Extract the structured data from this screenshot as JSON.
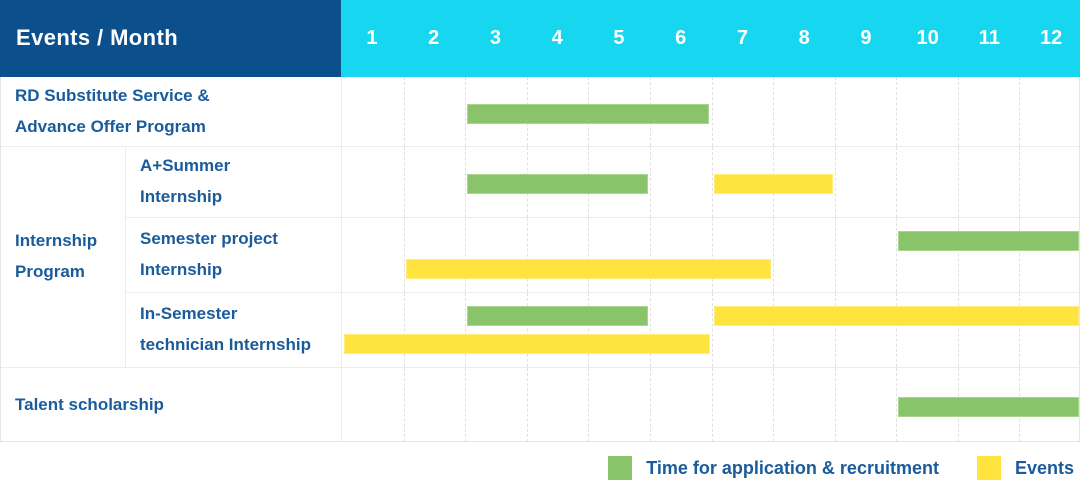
{
  "header": {
    "title": "Events / Month",
    "months": [
      "1",
      "2",
      "3",
      "4",
      "5",
      "6",
      "7",
      "8",
      "9",
      "10",
      "11",
      "12"
    ]
  },
  "colors": {
    "header_bg": "#0b4f8c",
    "months_bg": "#17d6ef",
    "application_green": "#8ac46a",
    "event_yellow": "#ffe33e",
    "label_text": "#1a5b9c"
  },
  "legend": [
    {
      "label": "Time for application & recruitment",
      "color": "green"
    },
    {
      "label": "Events",
      "color": "yellow"
    }
  ],
  "chart_data": {
    "type": "gantt",
    "unit": "month",
    "x_range": [
      1,
      12
    ],
    "series_legend": {
      "green": "Time for application & recruitment",
      "yellow": "Events"
    },
    "rows": [
      {
        "label": "RD Substitute Service &\nAdvance Offer Program",
        "group": null,
        "bars": [
          {
            "series": "Time for application & recruitment",
            "color": "green",
            "start": 3,
            "end": 6,
            "lane": 0
          }
        ]
      },
      {
        "label": "A+Summer\nInternship",
        "group": "Internship\nProgram",
        "bars": [
          {
            "series": "Time for application & recruitment",
            "color": "green",
            "start": 3,
            "end": 5,
            "lane": 0
          },
          {
            "series": "Events",
            "color": "yellow",
            "start": 7,
            "end": 8,
            "lane": 0
          }
        ]
      },
      {
        "label": "Semester project\nInternship",
        "group": "Internship\nProgram",
        "bars": [
          {
            "series": "Time for application & recruitment",
            "color": "green",
            "start": 10,
            "end": 12,
            "lane": 0
          },
          {
            "series": "Events",
            "color": "yellow",
            "start": 2,
            "end": 7,
            "lane": 1
          }
        ]
      },
      {
        "label": "In-Semester\ntechnician Internship",
        "group": "Internship\nProgram",
        "bars": [
          {
            "series": "Time for application & recruitment",
            "color": "green",
            "start": 3,
            "end": 5,
            "lane": 0
          },
          {
            "series": "Events",
            "color": "yellow",
            "start": 7,
            "end": 12,
            "lane": 0
          },
          {
            "series": "Events",
            "color": "yellow",
            "start": 1,
            "end": 6,
            "lane": 1
          }
        ]
      },
      {
        "label": "Talent scholarship",
        "group": null,
        "bars": [
          {
            "series": "Time for application & recruitment",
            "color": "green",
            "start": 10,
            "end": 12,
            "lane": 0
          }
        ]
      }
    ]
  }
}
